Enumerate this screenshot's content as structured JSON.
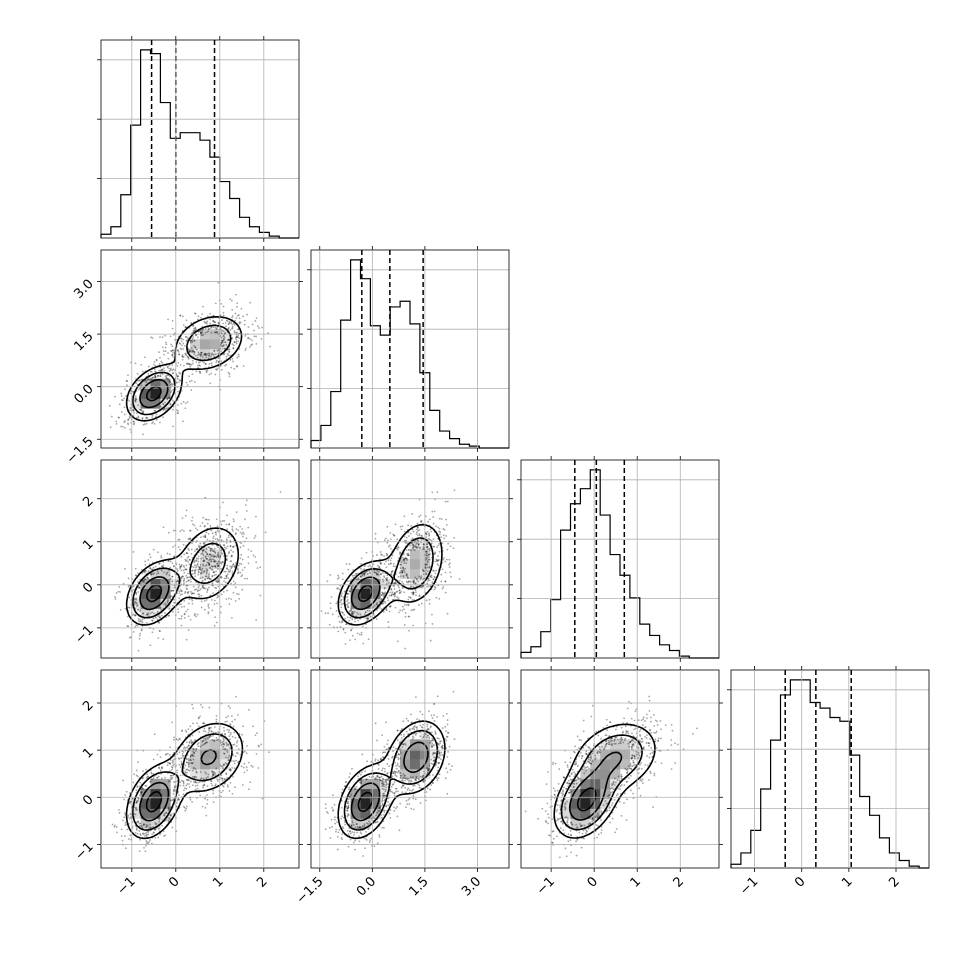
{
  "chart_data": {
    "type": "corner",
    "title": "",
    "n_params": 4,
    "parameters": [
      {
        "range": [
          -1.7,
          2.8
        ],
        "ticks": [
          "−1",
          "0",
          "1",
          "2"
        ],
        "tick_values": [
          -1,
          0,
          1,
          2
        ],
        "quantiles": [
          -0.55,
          0.0,
          0.88
        ],
        "hist": [
          0.02,
          0.06,
          0.23,
          0.6,
          1.0,
          0.98,
          0.72,
          0.53,
          0.56,
          0.56,
          0.52,
          0.43,
          0.3,
          0.21,
          0.11,
          0.06,
          0.03,
          0.01,
          0.0,
          0.0
        ]
      },
      {
        "range": [
          -1.75,
          3.9
        ],
        "ticks": [
          "−1.5",
          "0.0",
          "1.5",
          "3.0"
        ],
        "tick_values": [
          -1.5,
          0.0,
          1.5,
          3.0
        ],
        "quantiles": [
          -0.3,
          0.5,
          1.45
        ],
        "hist": [
          0.04,
          0.12,
          0.3,
          0.68,
          1.0,
          0.9,
          0.65,
          0.6,
          0.75,
          0.78,
          0.66,
          0.4,
          0.2,
          0.09,
          0.05,
          0.02,
          0.01,
          0.0,
          0.0,
          0.0
        ]
      },
      {
        "range": [
          -1.7,
          2.9
        ],
        "ticks": [
          "−1",
          "0",
          "1",
          "2"
        ],
        "tick_values": [
          -1,
          0,
          1,
          2
        ],
        "quantiles": [
          -0.45,
          0.05,
          0.7
        ],
        "hist": [
          0.03,
          0.06,
          0.14,
          0.31,
          0.68,
          0.82,
          0.9,
          1.0,
          0.76,
          0.55,
          0.44,
          0.32,
          0.18,
          0.12,
          0.07,
          0.04,
          0.01,
          0.0,
          0.0,
          0.0
        ]
      },
      {
        "range": [
          -1.5,
          2.7
        ],
        "ticks": [
          "−1",
          "0",
          "1",
          "2"
        ],
        "tick_values": [
          -1,
          0,
          1,
          2
        ],
        "quantiles": [
          -0.35,
          0.3,
          1.05
        ],
        "hist": [
          0.02,
          0.08,
          0.2,
          0.42,
          0.68,
          0.92,
          1.0,
          1.0,
          0.88,
          0.85,
          0.8,
          0.78,
          0.6,
          0.38,
          0.28,
          0.16,
          0.08,
          0.04,
          0.01,
          0.0
        ]
      }
    ],
    "mixture": [
      {
        "weight": 0.5,
        "mean": [
          -0.5,
          -0.2,
          -0.2,
          -0.1
        ],
        "sd": [
          0.32,
          0.4,
          0.38,
          0.4
        ],
        "corr": 0.35
      },
      {
        "weight": 0.5,
        "mean": [
          0.75,
          1.25,
          0.5,
          0.85
        ],
        "sd": [
          0.45,
          0.45,
          0.55,
          0.42
        ],
        "corr": 0.25
      }
    ],
    "contour_levels": [
      0.12,
      0.39,
      0.68,
      0.86
    ],
    "grid": true,
    "colors": {
      "points": "#000000",
      "lines": "#000000",
      "grid": "#b0b0b0"
    }
  }
}
